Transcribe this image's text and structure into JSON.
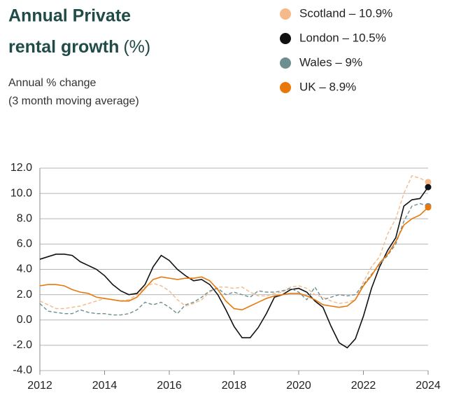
{
  "chart_data": {
    "type": "line",
    "title_lines": [
      "Annual Private",
      "rental growth"
    ],
    "title_unit": "(%)",
    "subtitle_lines": [
      "Annual % change",
      "(3 month moving average)"
    ],
    "x": [
      2012,
      2012.25,
      2012.5,
      2012.75,
      2013,
      2013.25,
      2013.5,
      2013.75,
      2014,
      2014.25,
      2014.5,
      2014.75,
      2015,
      2015.25,
      2015.5,
      2015.75,
      2016,
      2016.25,
      2016.5,
      2016.75,
      2017,
      2017.25,
      2017.5,
      2017.75,
      2018,
      2018.25,
      2018.5,
      2018.75,
      2019,
      2019.25,
      2019.5,
      2019.75,
      2020,
      2020.25,
      2020.5,
      2020.75,
      2021,
      2021.25,
      2021.5,
      2021.75,
      2022,
      2022.25,
      2022.5,
      2022.75,
      2023,
      2023.25,
      2023.5,
      2023.75,
      2024
    ],
    "series": [
      {
        "name": "Scotland – 10.9%",
        "color": "#f5b98a",
        "dashed": true,
        "values": [
          1.5,
          1.2,
          0.9,
          0.9,
          1.0,
          1.1,
          1.3,
          1.5,
          1.7,
          1.6,
          1.5,
          1.6,
          2.0,
          2.6,
          2.9,
          2.7,
          2.3,
          1.6,
          1.1,
          1.3,
          1.6,
          2.2,
          2.6,
          2.6,
          2.5,
          2.6,
          2.2,
          1.9,
          1.9,
          2.1,
          2.2,
          2.6,
          2.7,
          2.5,
          2.0,
          1.8,
          1.5,
          1.3,
          1.4,
          1.6,
          3.0,
          4.2,
          5.0,
          6.8,
          8.0,
          10.0,
          11.4,
          11.2,
          10.9
        ]
      },
      {
        "name": "London – 10.5%",
        "color": "#111111",
        "dashed": false,
        "values": [
          4.8,
          5.0,
          5.2,
          5.2,
          5.1,
          4.6,
          4.3,
          4.0,
          3.5,
          2.8,
          2.3,
          2.0,
          2.1,
          2.8,
          4.2,
          5.1,
          4.7,
          4.0,
          3.5,
          3.1,
          3.2,
          2.8,
          2.0,
          0.8,
          -0.5,
          -1.4,
          -1.4,
          -0.6,
          0.5,
          1.8,
          2.0,
          2.4,
          2.5,
          2.2,
          1.5,
          1.0,
          -0.5,
          -1.8,
          -2.2,
          -1.5,
          0.3,
          2.5,
          4.2,
          5.5,
          6.5,
          9.0,
          9.5,
          9.6,
          10.5
        ]
      },
      {
        "name": "Wales – 9%",
        "color": "#6e8f8f",
        "dashed": true,
        "values": [
          1.3,
          0.7,
          0.6,
          0.5,
          0.5,
          0.8,
          0.6,
          0.5,
          0.5,
          0.4,
          0.4,
          0.5,
          0.8,
          1.4,
          1.2,
          1.4,
          1.0,
          0.5,
          1.2,
          1.4,
          1.8,
          2.3,
          2.5,
          2.0,
          2.2,
          2.0,
          1.8,
          2.3,
          2.2,
          2.2,
          2.3,
          2.5,
          2.2,
          1.6,
          2.6,
          1.6,
          1.8,
          2.0,
          1.9,
          2.0,
          2.8,
          3.6,
          4.4,
          5.1,
          6.0,
          7.8,
          9.0,
          9.2,
          9.0
        ]
      },
      {
        "name": "UK – 8.9%",
        "color": "#e8780c",
        "dashed": false,
        "values": [
          2.7,
          2.8,
          2.8,
          2.7,
          2.4,
          2.2,
          2.1,
          1.8,
          1.7,
          1.6,
          1.5,
          1.5,
          1.8,
          2.5,
          3.2,
          3.4,
          3.3,
          3.2,
          3.3,
          3.3,
          3.4,
          3.1,
          2.4,
          1.5,
          0.9,
          0.8,
          1.1,
          1.4,
          1.7,
          1.9,
          2.0,
          2.1,
          2.1,
          1.9,
          1.6,
          1.2,
          1.1,
          1.0,
          1.1,
          1.6,
          2.7,
          3.5,
          4.5,
          5.2,
          6.2,
          7.5,
          8.0,
          8.3,
          8.9
        ]
      }
    ],
    "xlim": [
      2012,
      2024
    ],
    "xticks": [
      2012,
      2014,
      2016,
      2018,
      2020,
      2022,
      2024
    ],
    "ylim": [
      -4,
      12
    ],
    "yticks": [
      {
        "value": -4,
        "label": "-4.0"
      },
      {
        "value": -2,
        "label": "-2.0"
      },
      {
        "value": 0,
        "label": "0.0"
      },
      {
        "value": 2,
        "label": "2.0"
      },
      {
        "value": 4,
        "label": "4.0"
      },
      {
        "value": 6,
        "label": "6.0"
      },
      {
        "value": 8,
        "label": "8.0"
      },
      {
        "value": 10,
        "label": "10.0"
      },
      {
        "value": 12,
        "label": "12.0"
      }
    ],
    "grid": true,
    "end_markers": true,
    "legend": "top-right"
  }
}
